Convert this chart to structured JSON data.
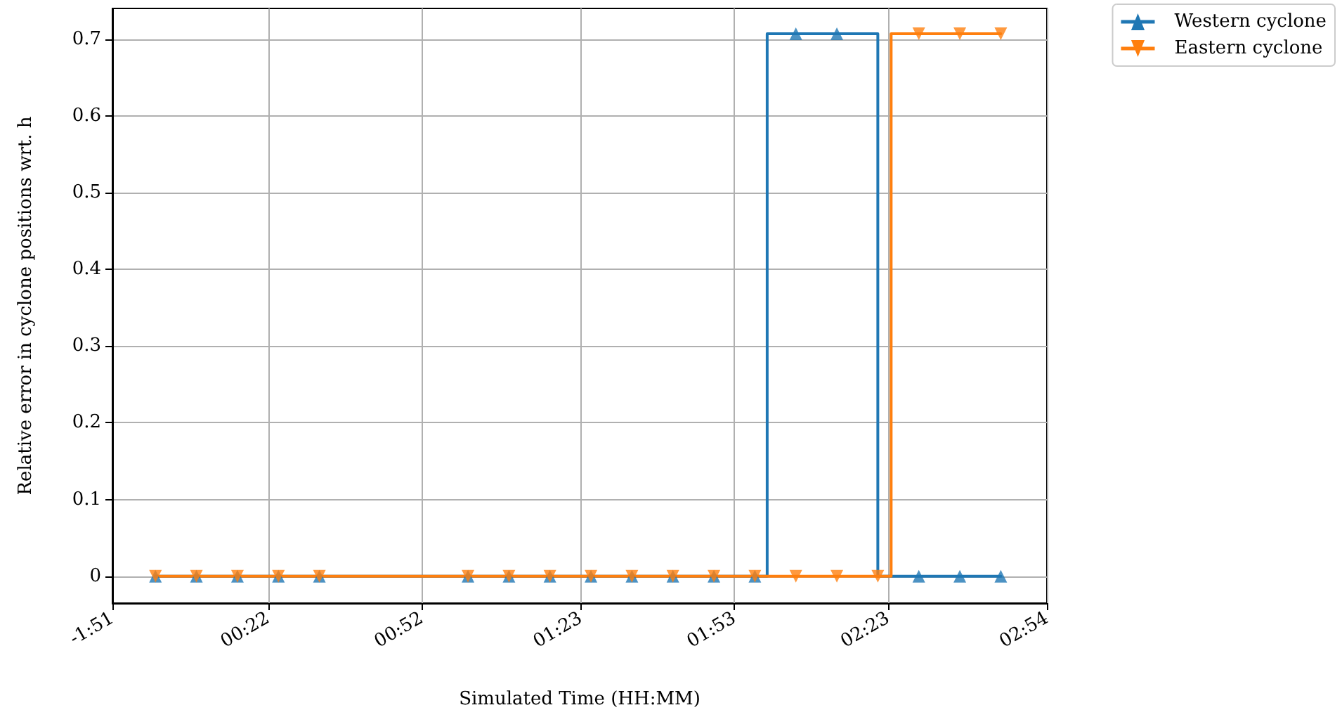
{
  "chart_data": {
    "type": "line",
    "xlabel": "Simulated Time (HH:MM)",
    "ylabel": "Relative error in cyclone positions wrt. h",
    "series": [
      {
        "name": "Western cyclone",
        "color": "#1f77b4",
        "marker": "none",
        "x": [
          0,
          1.99,
          1.99,
          2.35,
          2.35,
          2.75
        ],
        "values": [
          0,
          0,
          0.707,
          0.707,
          0,
          0
        ]
      },
      {
        "name": "Eastern cyclone",
        "color": "#ff7f0e",
        "marker": "none",
        "x": [
          0,
          2.3933,
          2.3933,
          2.75
        ],
        "values": [
          0,
          0,
          0.707,
          0.707
        ]
      },
      {
        "type": "scatter",
        "color": "#1f77b4",
        "marker": "triangle",
        "x": [
          0,
          0.1333,
          0.2667,
          0.4,
          0.5333,
          1.0167,
          1.15,
          1.2833,
          1.4167,
          1.55,
          1.6833,
          1.8167,
          1.95,
          2.0833,
          2.2167,
          2.35,
          2.4833,
          2.6167,
          2.75
        ],
        "values": [
          0,
          0,
          0,
          0,
          0,
          0,
          0,
          0,
          0,
          0,
          0,
          0,
          0,
          0.707,
          0.707,
          null,
          0,
          0,
          0
        ]
      },
      {
        "type": "scatter",
        "color": "#ff7f0e",
        "marker": "triangle-down",
        "x": [
          0,
          0.1333,
          0.2667,
          0.4,
          0.5333,
          1.0167,
          1.15,
          1.2833,
          1.4167,
          1.55,
          1.6833,
          1.8167,
          1.95,
          2.0833,
          2.2167,
          2.35,
          2.4833,
          2.6167,
          2.75
        ],
        "values": [
          0,
          0,
          0,
          0,
          0,
          0,
          0,
          0,
          0,
          0,
          0,
          0,
          0,
          0,
          0,
          0,
          0.707,
          0.707,
          0.707
        ]
      }
    ],
    "xlim": [
      -0.14,
      2.9
    ],
    "xticks": [
      {
        "value": -0.14,
        "label": "-1:51"
      },
      {
        "value": 0.3667,
        "label": "00:22"
      },
      {
        "value": 0.8667,
        "label": "00:52"
      },
      {
        "value": 1.3833,
        "label": "01:23"
      },
      {
        "value": 1.8833,
        "label": "01:53"
      },
      {
        "value": 2.3833,
        "label": "02:23"
      },
      {
        "value": 2.9,
        "label": "02:54"
      }
    ],
    "ylim": [
      -0.035,
      0.74
    ],
    "yticks": [
      0.0,
      0.1,
      0.2,
      0.3,
      0.4,
      0.5,
      0.6,
      0.7
    ],
    "grid": true,
    "legend": "top right"
  }
}
